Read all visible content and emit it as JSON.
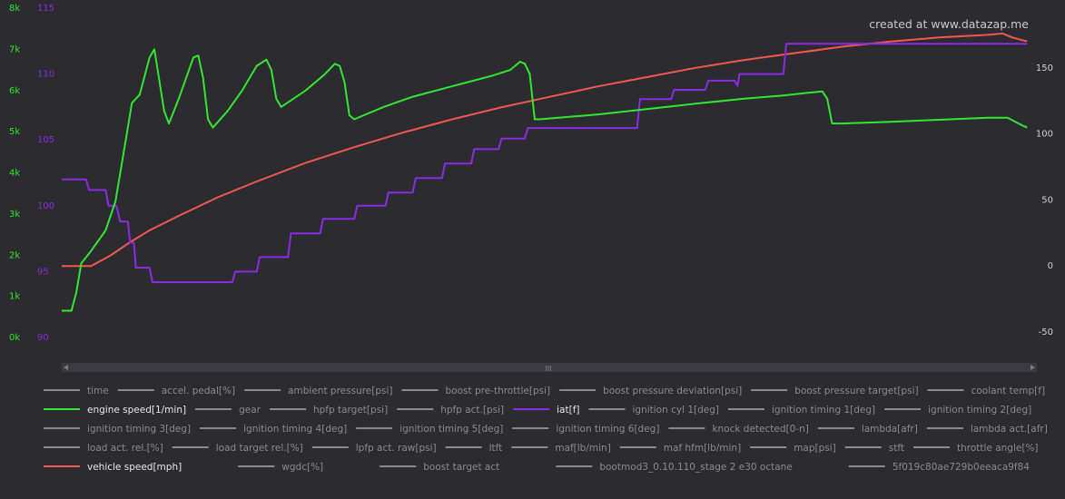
{
  "watermark": "created at www.datazap.me",
  "colors": {
    "background": "#2b2b30",
    "engine_speed": "#33e633",
    "iat": "#8a2be2",
    "vehicle_speed": "#f2584f",
    "left_axis_1": "#2ee62e",
    "left_axis_2": "#8a2be2",
    "right_axis": "#d0d0d0",
    "inactive_legend": "#8a8a90"
  },
  "chart_data": {
    "type": "line",
    "grid": false,
    "x": {
      "label": "time",
      "range": [
        0,
        1
      ]
    },
    "axes": [
      {
        "id": "rpm",
        "side": "left",
        "color": "#2ee62e",
        "ticks": [
          "0k",
          "1k",
          "2k",
          "3k",
          "4k",
          "5k",
          "6k",
          "7k",
          "8k"
        ],
        "range": [
          0,
          8000
        ]
      },
      {
        "id": "iat",
        "side": "left",
        "color": "#8a2be2",
        "ticks": [
          "90",
          "95",
          "100",
          "105",
          "110",
          "115"
        ],
        "range": [
          90,
          115
        ]
      },
      {
        "id": "speed",
        "side": "right",
        "color": "#d0d0d0",
        "ticks": [
          "-50",
          "0",
          "50",
          "100",
          "150"
        ],
        "range": [
          -50,
          200
        ]
      }
    ],
    "series": [
      {
        "name": "engine speed[1/min]",
        "axis": "rpm",
        "color": "#33e633",
        "points": [
          [
            0,
            650
          ],
          [
            0.01,
            650
          ],
          [
            0.015,
            1100
          ],
          [
            0.02,
            1800
          ],
          [
            0.03,
            2100
          ],
          [
            0.045,
            2600
          ],
          [
            0.055,
            3300
          ],
          [
            0.065,
            4700
          ],
          [
            0.072,
            5700
          ],
          [
            0.08,
            5900
          ],
          [
            0.09,
            6800
          ],
          [
            0.095,
            7000
          ],
          [
            0.097,
            6700
          ],
          [
            0.105,
            5500
          ],
          [
            0.11,
            5200
          ],
          [
            0.12,
            5800
          ],
          [
            0.135,
            6800
          ],
          [
            0.14,
            6850
          ],
          [
            0.145,
            6300
          ],
          [
            0.15,
            5300
          ],
          [
            0.155,
            5100
          ],
          [
            0.17,
            5500
          ],
          [
            0.185,
            6000
          ],
          [
            0.2,
            6600
          ],
          [
            0.21,
            6750
          ],
          [
            0.215,
            6500
          ],
          [
            0.22,
            5800
          ],
          [
            0.225,
            5600
          ],
          [
            0.25,
            6000
          ],
          [
            0.27,
            6400
          ],
          [
            0.28,
            6650
          ],
          [
            0.285,
            6600
          ],
          [
            0.29,
            6200
          ],
          [
            0.295,
            5400
          ],
          [
            0.3,
            5300
          ],
          [
            0.33,
            5600
          ],
          [
            0.36,
            5850
          ],
          [
            0.4,
            6100
          ],
          [
            0.44,
            6350
          ],
          [
            0.46,
            6500
          ],
          [
            0.47,
            6700
          ],
          [
            0.475,
            6650
          ],
          [
            0.48,
            6400
          ],
          [
            0.485,
            5300
          ],
          [
            0.49,
            5300
          ],
          [
            0.55,
            5420
          ],
          [
            0.6,
            5550
          ],
          [
            0.65,
            5680
          ],
          [
            0.7,
            5800
          ],
          [
            0.74,
            5880
          ],
          [
            0.76,
            5930
          ],
          [
            0.78,
            5980
          ],
          [
            0.785,
            5800
          ],
          [
            0.79,
            5200
          ],
          [
            0.8,
            5200
          ],
          [
            0.85,
            5240
          ],
          [
            0.9,
            5290
          ],
          [
            0.95,
            5340
          ],
          [
            0.97,
            5340
          ],
          [
            0.985,
            5150
          ],
          [
            0.99,
            5100
          ]
        ]
      },
      {
        "name": "iat[f]",
        "axis": "iat",
        "color": "#8a2be2",
        "points": [
          [
            0,
            102
          ],
          [
            0.02,
            102
          ],
          [
            0.025,
            102
          ],
          [
            0.028,
            101.2
          ],
          [
            0.045,
            101.2
          ],
          [
            0.048,
            100
          ],
          [
            0.056,
            100
          ],
          [
            0.06,
            98.8
          ],
          [
            0.068,
            98.8
          ],
          [
            0.07,
            97.2
          ],
          [
            0.074,
            97.2
          ],
          [
            0.076,
            95.3
          ],
          [
            0.09,
            95.3
          ],
          [
            0.093,
            94.2
          ],
          [
            0.175,
            94.2
          ],
          [
            0.178,
            95
          ],
          [
            0.2,
            95
          ],
          [
            0.203,
            96.1
          ],
          [
            0.232,
            96.1
          ],
          [
            0.235,
            97.9
          ],
          [
            0.265,
            97.9
          ],
          [
            0.268,
            99
          ],
          [
            0.3,
            99
          ],
          [
            0.303,
            100
          ],
          [
            0.332,
            100
          ],
          [
            0.335,
            101
          ],
          [
            0.36,
            101
          ],
          [
            0.363,
            102.1
          ],
          [
            0.39,
            102.1
          ],
          [
            0.393,
            103.2
          ],
          [
            0.42,
            103.2
          ],
          [
            0.423,
            104.3
          ],
          [
            0.448,
            104.3
          ],
          [
            0.451,
            105.1
          ],
          [
            0.475,
            105.1
          ],
          [
            0.478,
            105.9
          ],
          [
            0.59,
            105.9
          ],
          [
            0.593,
            108.1
          ],
          [
            0.625,
            108.1
          ],
          [
            0.628,
            108.8
          ],
          [
            0.66,
            108.8
          ],
          [
            0.663,
            109.5
          ],
          [
            0.69,
            109.5
          ],
          [
            0.693,
            109.1
          ],
          [
            0.695,
            110
          ],
          [
            0.73,
            110
          ],
          [
            0.733,
            110
          ],
          [
            0.74,
            110
          ],
          [
            0.743,
            112.3
          ],
          [
            0.98,
            112.3
          ],
          [
            0.99,
            112.3
          ]
        ]
      },
      {
        "name": "vehicle speed[mph]",
        "axis": "speed",
        "color": "#f2584f",
        "points": [
          [
            0,
            0
          ],
          [
            0.03,
            0
          ],
          [
            0.05,
            8
          ],
          [
            0.07,
            18
          ],
          [
            0.09,
            27
          ],
          [
            0.12,
            38
          ],
          [
            0.16,
            52
          ],
          [
            0.2,
            64
          ],
          [
            0.25,
            78
          ],
          [
            0.3,
            90
          ],
          [
            0.35,
            101
          ],
          [
            0.4,
            111
          ],
          [
            0.45,
            120
          ],
          [
            0.5,
            128
          ],
          [
            0.55,
            136
          ],
          [
            0.6,
            143
          ],
          [
            0.65,
            150
          ],
          [
            0.7,
            156
          ],
          [
            0.75,
            161
          ],
          [
            0.8,
            166
          ],
          [
            0.85,
            170
          ],
          [
            0.9,
            173
          ],
          [
            0.95,
            175
          ],
          [
            0.965,
            176
          ],
          [
            0.975,
            173
          ],
          [
            0.99,
            170
          ]
        ]
      }
    ]
  },
  "legend": {
    "rows": [
      [
        {
          "label": "time",
          "color": "#8a8a90",
          "active": false
        },
        {
          "label": "accel. pedal[%]",
          "color": "#8a8a90",
          "active": false
        },
        {
          "label": "ambient pressure[psi]",
          "color": "#8a8a90",
          "active": false
        },
        {
          "label": "boost pre-throttle[psi]",
          "color": "#8a8a90",
          "active": false
        },
        {
          "label": "boost pressure deviation[psi]",
          "color": "#8a8a90",
          "active": false
        },
        {
          "label": "boost pressure target[psi]",
          "color": "#8a8a90",
          "active": false
        },
        {
          "label": "coolant temp[f]",
          "color": "#8a8a90",
          "active": false
        }
      ],
      [
        {
          "label": "engine speed[1/min]",
          "color": "#33e633",
          "active": true
        },
        {
          "label": "gear",
          "color": "#8a8a90",
          "active": false
        },
        {
          "label": "hpfp target[psi]",
          "color": "#8a8a90",
          "active": false
        },
        {
          "label": "hpfp act.[psi]",
          "color": "#8a8a90",
          "active": false
        },
        {
          "label": "iat[f]",
          "color": "#8a2be2",
          "active": true
        },
        {
          "label": "ignition cyl 1[deg]",
          "color": "#8a8a90",
          "active": false
        },
        {
          "label": "ignition timing 1[deg]",
          "color": "#8a8a90",
          "active": false
        },
        {
          "label": "ignition timing 2[deg]",
          "color": "#8a8a90",
          "active": false
        }
      ],
      [
        {
          "label": "ignition timing 3[deg]",
          "color": "#8a8a90",
          "active": false
        },
        {
          "label": "ignition timing 4[deg]",
          "color": "#8a8a90",
          "active": false
        },
        {
          "label": "ignition timing 5[deg]",
          "color": "#8a8a90",
          "active": false
        },
        {
          "label": "ignition timing 6[deg]",
          "color": "#8a8a90",
          "active": false
        },
        {
          "label": "knock detected[0-n]",
          "color": "#8a8a90",
          "active": false
        },
        {
          "label": "lambda[afr]",
          "color": "#8a8a90",
          "active": false
        },
        {
          "label": "lambda act.[afr]",
          "color": "#8a8a90",
          "active": false
        }
      ],
      [
        {
          "label": "load act. rel.[%]",
          "color": "#8a8a90",
          "active": false
        },
        {
          "label": "load target rel.[%]",
          "color": "#8a8a90",
          "active": false
        },
        {
          "label": "lpfp act. raw[psi]",
          "color": "#8a8a90",
          "active": false
        },
        {
          "label": "ltft",
          "color": "#8a8a90",
          "active": false
        },
        {
          "label": "maf[lb/min]",
          "color": "#8a8a90",
          "active": false
        },
        {
          "label": "maf hfm[lb/min]",
          "color": "#8a8a90",
          "active": false
        },
        {
          "label": "map[psi]",
          "color": "#8a8a90",
          "active": false
        },
        {
          "label": "stft",
          "color": "#8a8a90",
          "active": false
        },
        {
          "label": "throttle angle[%]",
          "color": "#8a8a90",
          "active": false
        }
      ],
      [
        {
          "label": "vehicle speed[mph]",
          "color": "#f2584f",
          "active": true
        },
        {
          "label": "wgdc[%]",
          "color": "#8a8a90",
          "active": false
        },
        {
          "label": "boost target act",
          "color": "#8a8a90",
          "active": false
        },
        {
          "label": "bootmod3_0.10.110_stage 2 e30 octane",
          "color": "#8a8a90",
          "active": false
        },
        {
          "label": "5f019c80ae729b0eeaca9f84",
          "color": "#8a8a90",
          "active": false
        }
      ]
    ]
  },
  "scrollbar": {
    "thumb": "III"
  }
}
